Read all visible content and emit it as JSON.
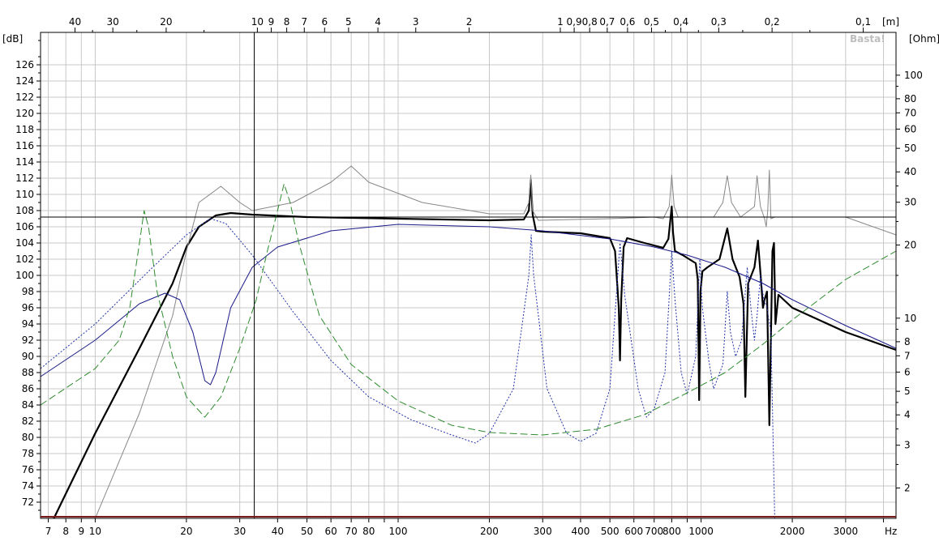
{
  "chart_data": {
    "type": "line",
    "watermark": "Basta!",
    "units": {
      "left": "[dB]",
      "right": "[Ohm]",
      "bottom": "Hz",
      "top": "[m]"
    },
    "x_scale": "log",
    "xlim": [
      6.6,
      4400
    ],
    "ylim": [
      70,
      130
    ],
    "y2_scale": "log",
    "y2lim": [
      1.5,
      150
    ],
    "grid": true,
    "x_ticks": [
      7,
      8,
      9,
      10,
      20,
      30,
      40,
      50,
      60,
      70,
      80,
      100,
      200,
      300,
      400,
      500,
      600,
      700,
      800,
      1000,
      2000,
      3000
    ],
    "x_tick_labels": [
      "7",
      "8",
      "9",
      "10",
      "20",
      "30",
      "40",
      "50",
      "60",
      "70",
      "80",
      "100",
      "200",
      "300",
      "400",
      "500",
      "600",
      "700",
      "800",
      "1000",
      "2000",
      "3000"
    ],
    "top_ticks": [
      {
        "m": 40,
        "label": "40"
      },
      {
        "m": 30,
        "label": "30"
      },
      {
        "m": 20,
        "label": "20"
      },
      {
        "m": 10,
        "label": "10"
      },
      {
        "m": 9,
        "label": "9"
      },
      {
        "m": 8,
        "label": "8"
      },
      {
        "m": 7,
        "label": "7"
      },
      {
        "m": 6,
        "label": "6"
      },
      {
        "m": 5,
        "label": "5"
      },
      {
        "m": 4,
        "label": "4"
      },
      {
        "m": 3,
        "label": "3"
      },
      {
        "m": 2,
        "label": "2"
      },
      {
        "m": 1,
        "label": "1"
      },
      {
        "m": 0.9,
        "label": "0,9"
      },
      {
        "m": 0.8,
        "label": "0,8"
      },
      {
        "m": 0.7,
        "label": "0,7"
      },
      {
        "m": 0.6,
        "label": "0,6"
      },
      {
        "m": 0.5,
        "label": "0,5"
      },
      {
        "m": 0.4,
        "label": "0,4"
      },
      {
        "m": 0.3,
        "label": "0,3"
      },
      {
        "m": 0.2,
        "label": "0,2"
      },
      {
        "m": 0.1,
        "label": "0,1"
      }
    ],
    "y_ticks": [
      72,
      74,
      76,
      78,
      80,
      82,
      84,
      86,
      88,
      90,
      92,
      94,
      96,
      98,
      100,
      102,
      104,
      106,
      108,
      110,
      112,
      114,
      116,
      118,
      120,
      122,
      124,
      126
    ],
    "y2_ticks": [
      2,
      3,
      4,
      5,
      6,
      7,
      8,
      10,
      20,
      30,
      40,
      50,
      60,
      70,
      80,
      100
    ],
    "cursor": {
      "x": 33.5,
      "y": 107.2
    },
    "series": [
      {
        "color": "#000000",
        "style": "solid",
        "width": 2.2,
        "points": [
          [
            7.3,
            70
          ],
          [
            10,
            80.5
          ],
          [
            14,
            91
          ],
          [
            18,
            99
          ],
          [
            20,
            103.5
          ],
          [
            22,
            106
          ],
          [
            25,
            107.4
          ],
          [
            28,
            107.7
          ],
          [
            33,
            107.5
          ],
          [
            50,
            107.2
          ],
          [
            100,
            107
          ],
          [
            200,
            106.8
          ],
          [
            260,
            106.9
          ],
          [
            270,
            108
          ],
          [
            274,
            111.8
          ],
          [
            278,
            107.5
          ],
          [
            285,
            105.5
          ],
          [
            300,
            105.4
          ],
          [
            400,
            105.2
          ],
          [
            500,
            104.6
          ],
          [
            520,
            103
          ],
          [
            535,
            96
          ],
          [
            540,
            89.5
          ],
          [
            545,
            97
          ],
          [
            555,
            103.5
          ],
          [
            570,
            104.6
          ],
          [
            650,
            104
          ],
          [
            750,
            103.4
          ],
          [
            780,
            104.5
          ],
          [
            800,
            108.5
          ],
          [
            808,
            105.3
          ],
          [
            820,
            103
          ],
          [
            870,
            102.5
          ],
          [
            960,
            101.5
          ],
          [
            975,
            99.5
          ],
          [
            985,
            84.6
          ],
          [
            995,
            98
          ],
          [
            1010,
            100.5
          ],
          [
            1050,
            101
          ],
          [
            1150,
            102
          ],
          [
            1220,
            105.8
          ],
          [
            1270,
            102
          ],
          [
            1340,
            99.8
          ],
          [
            1380,
            96.5
          ],
          [
            1400,
            85
          ],
          [
            1430,
            99
          ],
          [
            1500,
            101
          ],
          [
            1540,
            104.3
          ],
          [
            1580,
            99
          ],
          [
            1600,
            96
          ],
          [
            1620,
            97
          ],
          [
            1650,
            98
          ],
          [
            1680,
            81.5
          ],
          [
            1720,
            103
          ],
          [
            1740,
            104
          ],
          [
            1760,
            94
          ],
          [
            1800,
            97.6
          ],
          [
            2000,
            96
          ],
          [
            3000,
            93
          ],
          [
            4400,
            90.8
          ]
        ]
      },
      {
        "color": "#888888",
        "style": "solid",
        "width": 1,
        "points": [
          [
            10,
            70
          ],
          [
            14,
            83
          ],
          [
            18,
            95
          ],
          [
            20,
            103
          ],
          [
            22,
            109
          ],
          [
            26,
            111
          ],
          [
            30,
            109
          ],
          [
            33,
            108
          ],
          [
            45,
            109
          ],
          [
            60,
            111.5
          ],
          [
            70,
            113.5
          ],
          [
            80,
            111.5
          ],
          [
            120,
            109
          ],
          [
            200,
            107.6
          ],
          [
            260,
            107.6
          ],
          [
            270,
            109
          ],
          [
            274,
            112.4
          ],
          [
            278,
            108
          ],
          [
            290,
            106.8
          ],
          [
            500,
            107
          ],
          [
            700,
            107.2
          ],
          [
            750,
            107
          ],
          [
            785,
            108.5
          ],
          [
            800,
            112.4
          ],
          [
            815,
            108.5
          ],
          [
            840,
            107.2
          ],
          [
            1100,
            107.2
          ],
          [
            1180,
            109
          ],
          [
            1220,
            112.3
          ],
          [
            1260,
            109
          ],
          [
            1350,
            107.2
          ],
          [
            1500,
            108.5
          ],
          [
            1530,
            112.3
          ],
          [
            1570,
            108.5
          ],
          [
            1620,
            107
          ],
          [
            1640,
            106
          ],
          [
            1660,
            108
          ],
          [
            1680,
            113
          ],
          [
            1700,
            107
          ],
          [
            1750,
            107.2
          ],
          [
            3000,
            107.2
          ],
          [
            4400,
            105
          ]
        ]
      },
      {
        "color": "#1a1a8a",
        "style": "solid",
        "width": 1,
        "points": [
          [
            6.6,
            87.5
          ],
          [
            10,
            92
          ],
          [
            14,
            96.5
          ],
          [
            17,
            97.8
          ],
          [
            19,
            97
          ],
          [
            21,
            93
          ],
          [
            23,
            87
          ],
          [
            24,
            86.5
          ],
          [
            25,
            88
          ],
          [
            28,
            96
          ],
          [
            33,
            101
          ],
          [
            40,
            103.5
          ],
          [
            60,
            105.5
          ],
          [
            100,
            106.3
          ],
          [
            200,
            106
          ],
          [
            300,
            105.5
          ],
          [
            500,
            104.5
          ],
          [
            700,
            103.5
          ],
          [
            900,
            102.5
          ],
          [
            1200,
            101
          ],
          [
            1600,
            99
          ],
          [
            2000,
            97
          ],
          [
            3000,
            93.8
          ],
          [
            4400,
            91
          ]
        ]
      },
      {
        "color": "#2233aa",
        "style": "dotted",
        "width": 1,
        "points": [
          [
            6.6,
            88.5
          ],
          [
            10,
            94
          ],
          [
            15,
            100.5
          ],
          [
            20,
            105
          ],
          [
            24,
            107
          ],
          [
            27,
            106.4
          ],
          [
            33,
            102.5
          ],
          [
            45,
            95.5
          ],
          [
            60,
            89.5
          ],
          [
            80,
            85
          ],
          [
            110,
            82.2
          ],
          [
            150,
            80.3
          ],
          [
            180,
            79.3
          ],
          [
            200,
            80.5
          ],
          [
            240,
            86
          ],
          [
            270,
            100
          ],
          [
            275,
            105
          ],
          [
            280,
            100
          ],
          [
            310,
            86
          ],
          [
            360,
            80.5
          ],
          [
            400,
            79.5
          ],
          [
            450,
            80.5
          ],
          [
            500,
            86
          ],
          [
            540,
            104
          ],
          [
            560,
            97.5
          ],
          [
            620,
            86
          ],
          [
            660,
            82.5
          ],
          [
            700,
            83.5
          ],
          [
            760,
            88
          ],
          [
            800,
            103
          ],
          [
            820,
            97
          ],
          [
            860,
            88
          ],
          [
            900,
            85.3
          ],
          [
            960,
            90
          ],
          [
            990,
            102
          ],
          [
            1010,
            96
          ],
          [
            1060,
            89.5
          ],
          [
            1100,
            86
          ],
          [
            1180,
            89
          ],
          [
            1220,
            98
          ],
          [
            1250,
            93
          ],
          [
            1300,
            90
          ],
          [
            1360,
            92
          ],
          [
            1420,
            101
          ],
          [
            1460,
            96
          ],
          [
            1500,
            92
          ],
          [
            1530,
            95
          ],
          [
            1570,
            100
          ],
          [
            1610,
            97
          ],
          [
            1650,
            96
          ],
          [
            1700,
            93
          ],
          [
            1750,
            70
          ]
        ]
      },
      {
        "color": "#2e8b2e",
        "style": "dashed",
        "width": 1,
        "points": [
          [
            6.6,
            84
          ],
          [
            10,
            88.5
          ],
          [
            12,
            92
          ],
          [
            13,
            96
          ],
          [
            14,
            104
          ],
          [
            14.5,
            108
          ],
          [
            15,
            106
          ],
          [
            16,
            98
          ],
          [
            18,
            90
          ],
          [
            20,
            85
          ],
          [
            23,
            82.5
          ],
          [
            26,
            85
          ],
          [
            30,
            91
          ],
          [
            34,
            97
          ],
          [
            37,
            103
          ],
          [
            40,
            108
          ],
          [
            42,
            111.3
          ],
          [
            44,
            109
          ],
          [
            47,
            104
          ],
          [
            55,
            95
          ],
          [
            70,
            89
          ],
          [
            100,
            84.5
          ],
          [
            150,
            81.5
          ],
          [
            200,
            80.6
          ],
          [
            300,
            80.3
          ],
          [
            450,
            81
          ],
          [
            650,
            82.8
          ],
          [
            900,
            85.5
          ],
          [
            1200,
            88
          ],
          [
            1600,
            91.5
          ],
          [
            2000,
            94.5
          ],
          [
            3000,
            99.5
          ],
          [
            4400,
            103
          ]
        ]
      }
    ]
  }
}
